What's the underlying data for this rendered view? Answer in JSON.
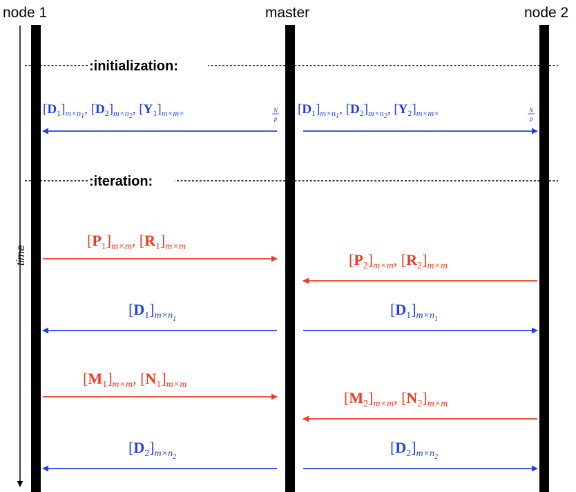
{
  "headers": {
    "node1": "node 1",
    "master": "master",
    "node2": "node 2"
  },
  "axis": {
    "label": "time"
  },
  "sections": {
    "init": ":initialization:",
    "iter": ":iteration:"
  },
  "messages": [
    {
      "id": "init-left",
      "direction": "master-to-node1",
      "color": "#1f3fe8",
      "text": "[D1]m×n1, [D2]m×n2, [Y1]m×m×N/p"
    },
    {
      "id": "init-right",
      "direction": "master-to-node2",
      "color": "#1f3fe8",
      "text": "[D1]m×n1, [D2]m×n2, [Y2]m×m×N/p"
    },
    {
      "id": "pr1",
      "direction": "node1-to-master",
      "color": "#f03a1e",
      "text": "[P1]m×m, [R1]m×m"
    },
    {
      "id": "pr2",
      "direction": "node2-to-master",
      "color": "#f03a1e",
      "text": "[P2]m×m, [R2]m×m"
    },
    {
      "id": "d1-left",
      "direction": "master-to-node1",
      "color": "#1f3fe8",
      "text": "[D1]m×n1"
    },
    {
      "id": "d1-right",
      "direction": "master-to-node2",
      "color": "#1f3fe8",
      "text": "[D1]m×n1"
    },
    {
      "id": "mn1",
      "direction": "node1-to-master",
      "color": "#f03a1e",
      "text": "[M1]m×m, [N1]m×m"
    },
    {
      "id": "mn2",
      "direction": "node2-to-master",
      "color": "#f03a1e",
      "text": "[M2]m×m, [N2]m×m"
    },
    {
      "id": "d2-left",
      "direction": "master-to-node1",
      "color": "#1f3fe8",
      "text": "[D2]m×n2"
    },
    {
      "id": "d2-right",
      "direction": "master-to-node2",
      "color": "#1f3fe8",
      "text": "[D2]m×n2"
    }
  ],
  "colors": {
    "blue": "#1f3fe8",
    "red": "#f03a1e",
    "lifeline": "#000000"
  }
}
